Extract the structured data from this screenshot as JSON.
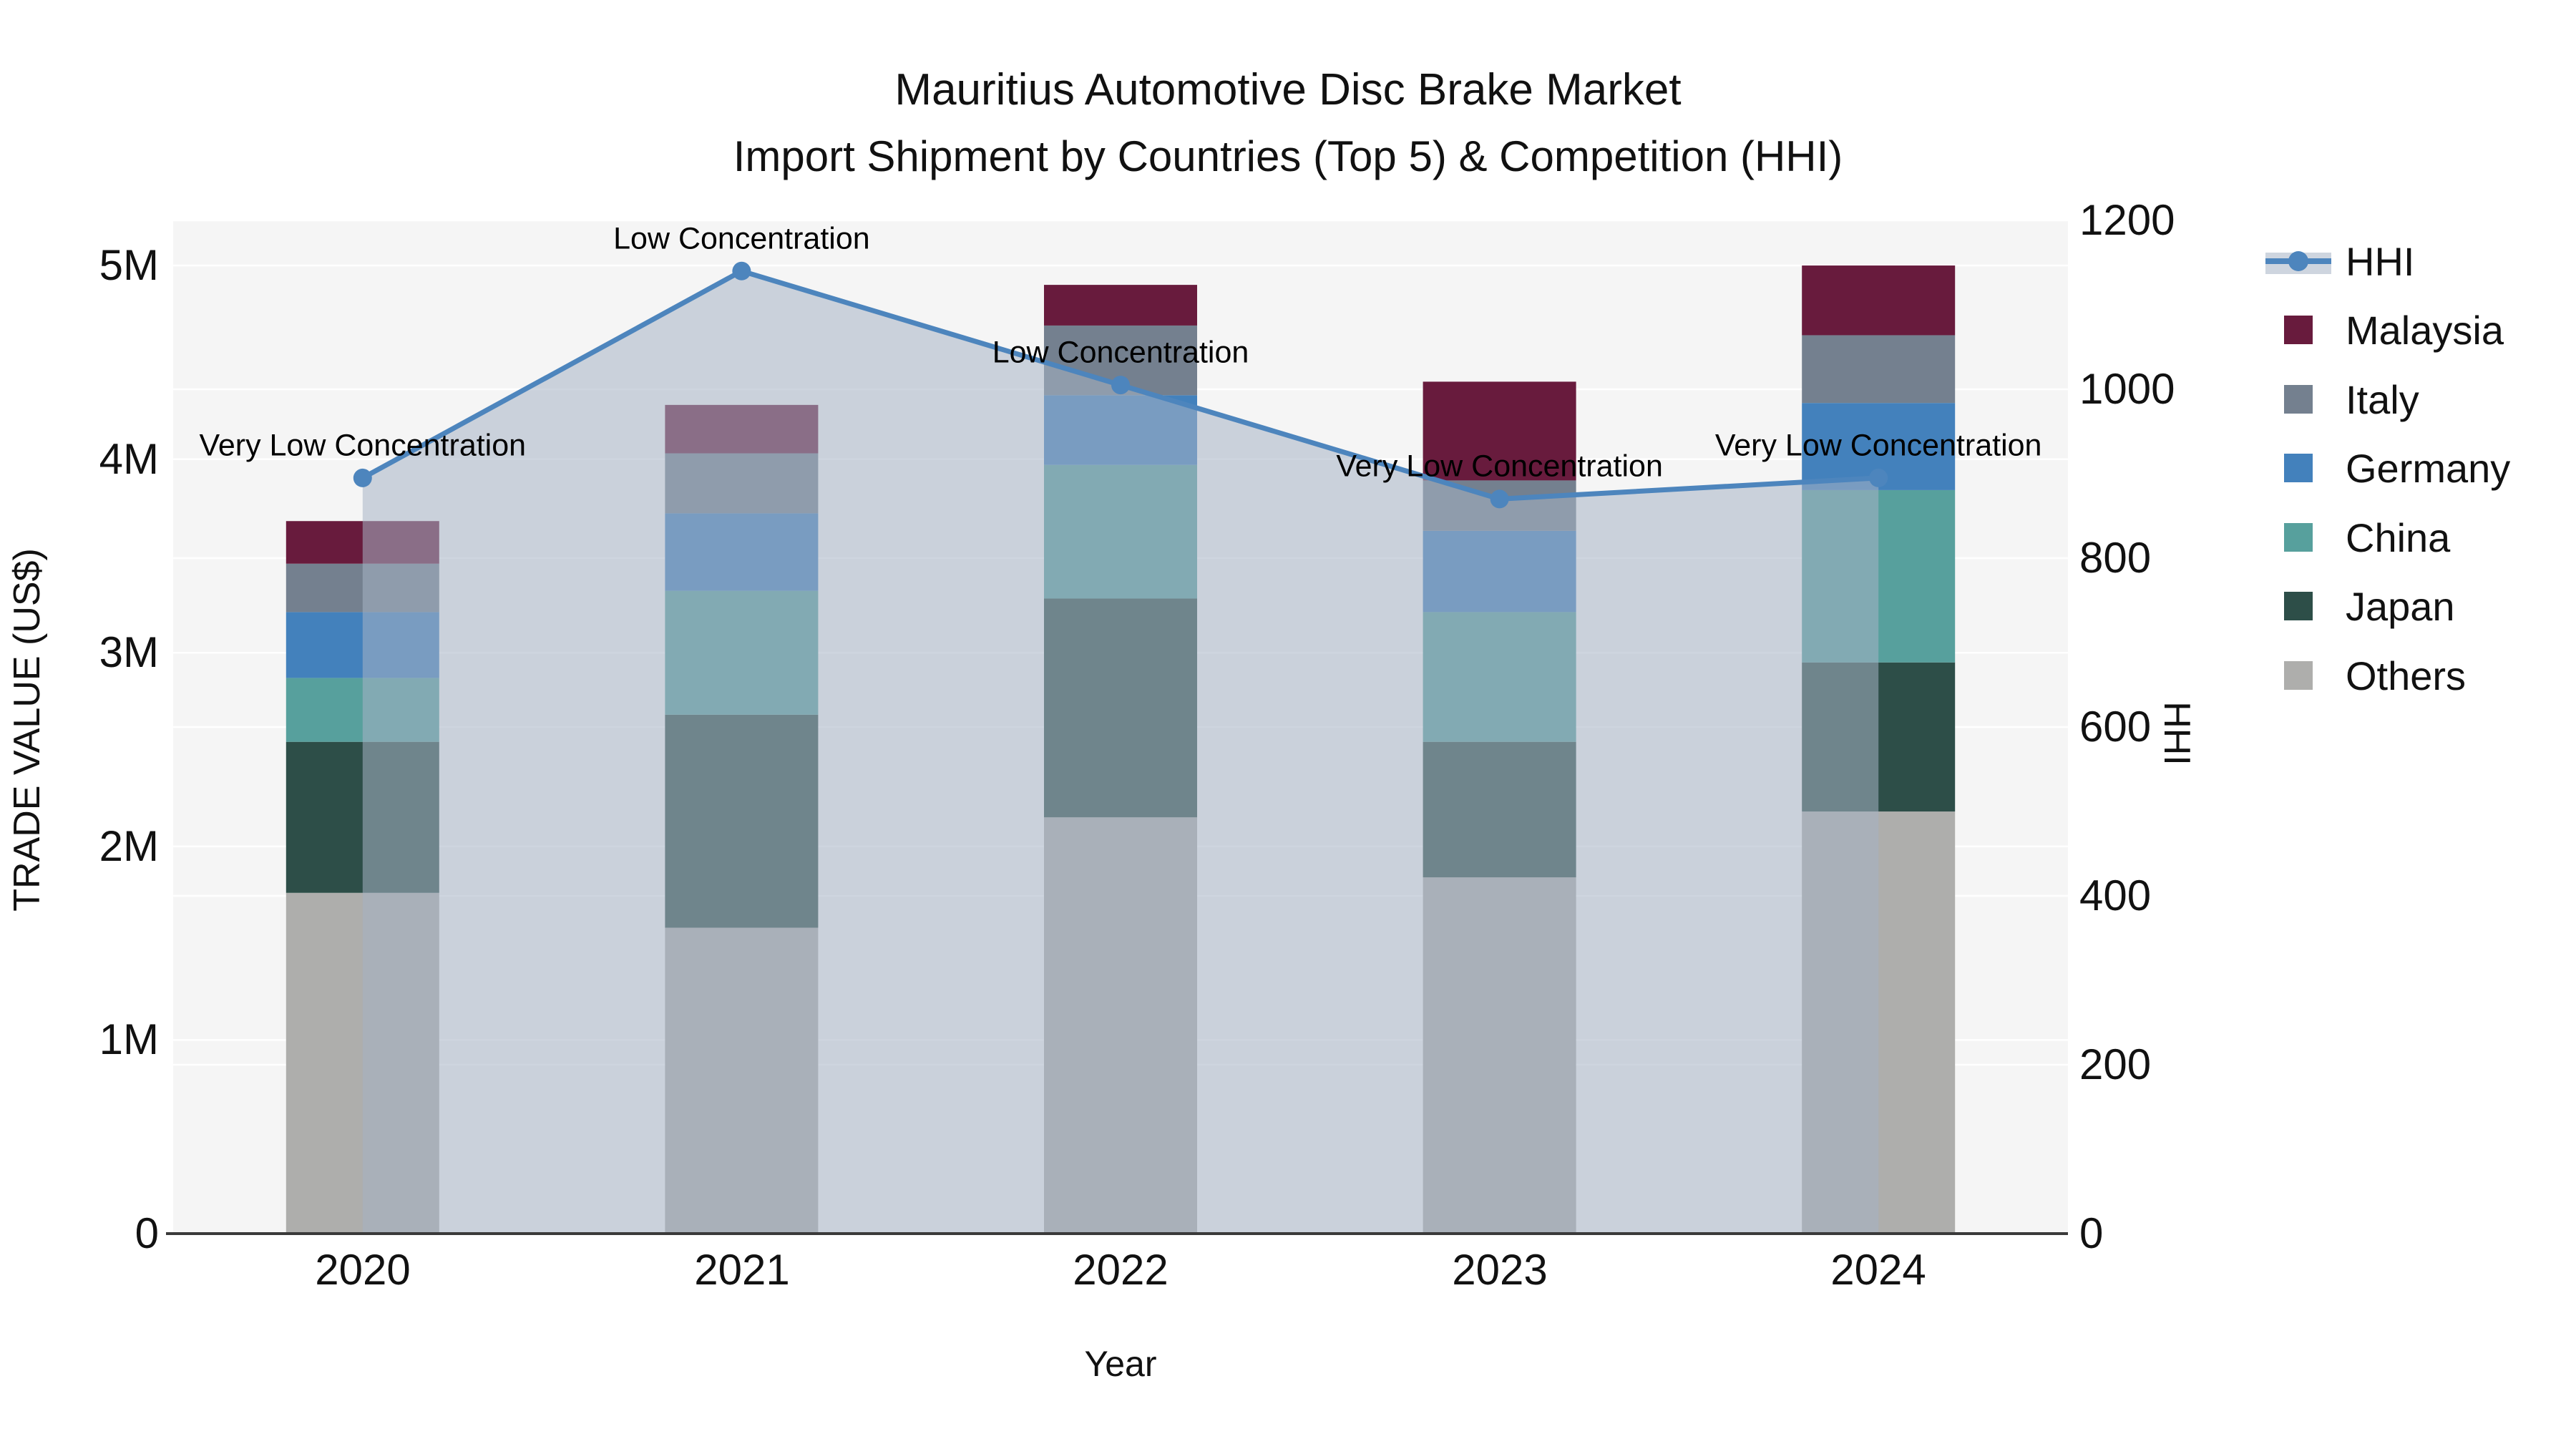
{
  "title": {
    "line1": "Mauritius Automotive Disc Brake Market",
    "line2": "Import Shipment by Countries (Top 5) & Competition (HHI)"
  },
  "axes": {
    "y_left": {
      "label": "TRADE VALUE (US$)",
      "ticks": [
        "0",
        "1M",
        "2M",
        "3M",
        "4M",
        "5M"
      ]
    },
    "y_right": {
      "label": "HHI",
      "ticks": [
        "0",
        "200",
        "400",
        "600",
        "800",
        "1000",
        "1200"
      ]
    },
    "x": {
      "label": "Year"
    }
  },
  "legend": {
    "items": [
      {
        "label": "HHI",
        "type": "line",
        "color": "#4d85bd"
      },
      {
        "label": "Malaysia",
        "type": "box",
        "color": "#681b3d"
      },
      {
        "label": "Italy",
        "type": "box",
        "color": "#74808f"
      },
      {
        "label": "Germany",
        "type": "box",
        "color": "#4381bc"
      },
      {
        "label": "China",
        "type": "box",
        "color": "#57a09d"
      },
      {
        "label": "Japan",
        "type": "box",
        "color": "#2d4e48"
      },
      {
        "label": "Others",
        "type": "box",
        "color": "#aeaeac"
      }
    ]
  },
  "plot": {
    "background": "#f5f5f5",
    "gridline_color": "#ffffff",
    "spine_color": "#3a3a3a"
  },
  "chart_data": {
    "type": "bar",
    "subtype": "stacked-bar-with-line-overlay",
    "categories": [
      "2020",
      "2021",
      "2022",
      "2023",
      "2024"
    ],
    "value_unit_left": "millions US$",
    "stack_order": "bottom_to_top",
    "series": [
      {
        "name": "Others",
        "color": "#aeaeac",
        "values": [
          1.76,
          1.58,
          2.15,
          1.84,
          2.18
        ]
      },
      {
        "name": "Japan",
        "color": "#2d4e48",
        "values": [
          0.78,
          1.1,
          1.13,
          0.7,
          0.77
        ]
      },
      {
        "name": "China",
        "color": "#57a09d",
        "values": [
          0.33,
          0.64,
          0.69,
          0.67,
          0.89
        ]
      },
      {
        "name": "Germany",
        "color": "#4381bc",
        "values": [
          0.34,
          0.4,
          0.36,
          0.42,
          0.45
        ]
      },
      {
        "name": "Italy",
        "color": "#74808f",
        "values": [
          0.25,
          0.31,
          0.36,
          0.26,
          0.35
        ]
      },
      {
        "name": "Malaysia",
        "color": "#681b3d",
        "values": [
          0.22,
          0.25,
          0.21,
          0.51,
          0.36
        ]
      }
    ],
    "totals": [
      3.68,
      4.28,
      4.9,
      4.4,
      5.0
    ],
    "hhi": {
      "name": "HHI",
      "color": "#4d85bd",
      "area_color": "rgba(166,179,197,0.55)",
      "values": [
        895,
        1140,
        1005,
        870,
        895
      ]
    },
    "annotations": [
      "Very Low Concentration",
      "Low Concentration",
      "Low Concentration",
      "Very Low Concentration",
      "Very Low Concentration"
    ],
    "ylim_left": [
      0,
      5.233
    ],
    "ylim_right": [
      0,
      1200
    ],
    "left_tick_values": [
      0,
      1,
      2,
      3,
      4,
      5
    ],
    "right_tick_values": [
      0,
      200,
      400,
      600,
      800,
      1000,
      1200
    ],
    "grid": true,
    "legend_position": "right"
  }
}
